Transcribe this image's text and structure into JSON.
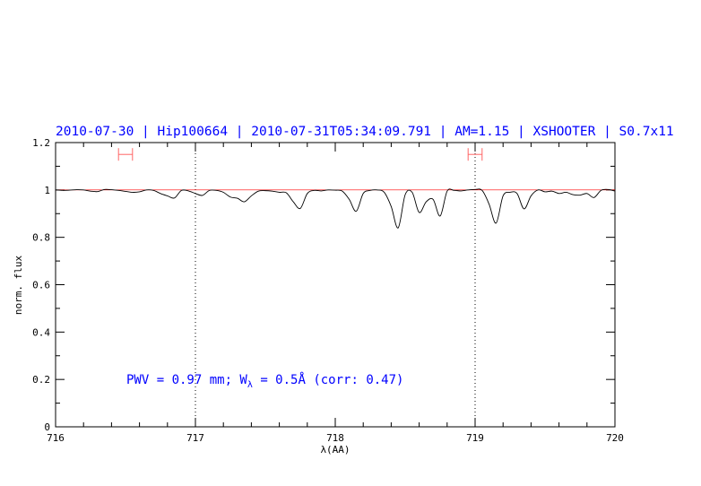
{
  "chart_data": {
    "type": "line",
    "title": "2010-07-30 | Hip100664 | 2010-07-31T05:34:09.791 | AM=1.15 | XSHOOTER | S0.7x11",
    "xlabel": "λ(AA)",
    "ylabel": "norm. flux",
    "xlim": [
      716,
      720
    ],
    "ylim": [
      0,
      1.2
    ],
    "xticks": [
      "716",
      "717",
      "718",
      "719",
      "720"
    ],
    "yticks": [
      "0",
      "0.2",
      "0.4",
      "0.6",
      "0.8",
      "1",
      "1.2"
    ],
    "grid": false,
    "vlines_dotted": [
      717,
      719
    ],
    "continuum_level": 1.0,
    "range_markers": [
      {
        "from": 716.45,
        "to": 716.55,
        "y": 1.15
      },
      {
        "from": 718.95,
        "to": 719.05,
        "y": 1.15
      }
    ],
    "annotation": {
      "prefix": "PWV = 0.97 mm; W",
      "sub": "λ",
      "suffix": " = 0.5Å (corr: 0.47)"
    },
    "colors": {
      "title": "#0000ff",
      "spectrum": "#000000",
      "continuum": "#ff0000",
      "markers": "#ff6666",
      "annotation": "#0000ff"
    },
    "series": [
      {
        "x": [
          716.0,
          716.05,
          716.1,
          716.15,
          716.2,
          716.25,
          716.3,
          716.35,
          716.4,
          716.45,
          716.5,
          716.55,
          716.6,
          716.65,
          716.7,
          716.75,
          716.8,
          716.85,
          716.9,
          716.95,
          717.0,
          717.05,
          717.1,
          717.15,
          717.2,
          717.25,
          717.3,
          717.35,
          717.4,
          717.45,
          717.5,
          717.55,
          717.6,
          717.65,
          717.7,
          717.75,
          717.8,
          717.85,
          717.9,
          717.95,
          718.0,
          718.05,
          718.1,
          718.15,
          718.2,
          718.25,
          718.3,
          718.35,
          718.4,
          718.45,
          718.5,
          718.55,
          718.6,
          718.65,
          718.7,
          718.75,
          718.8,
          718.85,
          718.9,
          718.95,
          719.0,
          719.05,
          719.1,
          719.15,
          719.2,
          719.25,
          719.3,
          719.35,
          719.4,
          719.45,
          719.5,
          719.55,
          719.6,
          719.65,
          719.7,
          719.75,
          719.8,
          719.85,
          719.9,
          719.95,
          720.0
        ],
        "y": [
          1.0,
          0.998,
          0.999,
          1.001,
          1.0,
          0.995,
          0.993,
          1.002,
          1.001,
          0.998,
          0.994,
          0.99,
          0.992,
          1.0,
          0.998,
          0.985,
          0.975,
          0.966,
          0.998,
          0.996,
          0.985,
          0.977,
          0.998,
          0.998,
          0.99,
          0.97,
          0.965,
          0.95,
          0.975,
          0.995,
          0.997,
          0.995,
          0.99,
          0.988,
          0.95,
          0.922,
          0.985,
          0.998,
          0.996,
          1.0,
          0.999,
          0.995,
          0.96,
          0.91,
          0.985,
          0.998,
          1.0,
          0.99,
          0.93,
          0.84,
          0.98,
          0.99,
          0.905,
          0.95,
          0.96,
          0.89,
          0.995,
          0.998,
          0.996,
          1.0,
          1.002,
          0.998,
          0.94,
          0.86,
          0.975,
          0.99,
          0.985,
          0.92,
          0.975,
          1.0,
          0.992,
          0.995,
          0.985,
          0.99,
          0.98,
          0.978,
          0.985,
          0.968,
          0.998,
          1.002,
          0.995
        ]
      }
    ]
  }
}
